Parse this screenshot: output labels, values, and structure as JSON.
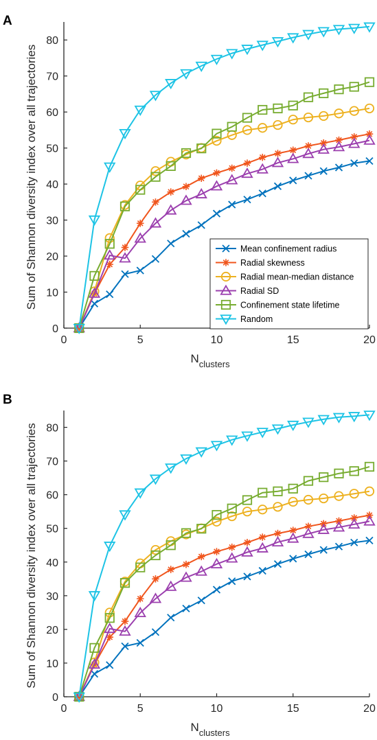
{
  "panels": [
    {
      "letter": "A"
    },
    {
      "letter": "B"
    }
  ],
  "chart_data": [
    {
      "type": "line",
      "panel": "A",
      "xlabel": "N",
      "xlabel_subscript": "clusters",
      "ylabel": "Sum of Shannon diversity index over all trajectories",
      "xlim": [
        0,
        20
      ],
      "ylim": [
        0,
        85
      ],
      "xticks": [
        0,
        5,
        10,
        15,
        20
      ],
      "yticks": [
        0,
        10,
        20,
        30,
        40,
        50,
        60,
        70,
        80
      ],
      "legend_position": "lower-right",
      "x": [
        1,
        2,
        3,
        4,
        5,
        6,
        7,
        8,
        9,
        10,
        11,
        12,
        13,
        14,
        15,
        16,
        17,
        18,
        19,
        20
      ],
      "series": [
        {
          "name": "Mean confinement radius",
          "color": "#0072BD",
          "marker": "x",
          "values": [
            0,
            6.8,
            9.4,
            15,
            16,
            19.2,
            23.5,
            26.2,
            28.6,
            31.8,
            34.3,
            35.7,
            37.4,
            39.4,
            41,
            42.3,
            43.6,
            44.6,
            45.8,
            46.4
          ]
        },
        {
          "name": "Radial skewness",
          "color": "#F0551C",
          "marker": "asterisk",
          "values": [
            0,
            9.6,
            17.7,
            22.4,
            29.1,
            35,
            37.8,
            39.3,
            41.6,
            43.1,
            44.4,
            45.8,
            47.4,
            48.5,
            49.4,
            50.6,
            51.4,
            52.2,
            53.1,
            53.9
          ]
        },
        {
          "name": "Radial mean-median distance",
          "color": "#EDB120",
          "marker": "circle",
          "values": [
            0,
            10.2,
            25,
            34.2,
            39.6,
            43.6,
            46.2,
            48.2,
            50,
            52,
            53.6,
            55,
            55.6,
            56.4,
            57.9,
            58.5,
            58.9,
            59.6,
            60.3,
            61
          ]
        },
        {
          "name": "Radial SD",
          "color": "#9B3FAE",
          "marker": "triangle-up",
          "values": [
            0,
            9.6,
            20.2,
            19.4,
            24.9,
            29.1,
            32.7,
            35.4,
            37.2,
            39.4,
            41.1,
            42.9,
            44.1,
            45.9,
            47,
            48.4,
            49.6,
            50.3,
            51.2,
            52.1
          ]
        },
        {
          "name": "Confinement state lifetime",
          "color": "#77AC30",
          "marker": "square",
          "values": [
            0,
            14.5,
            23.4,
            33.8,
            38.4,
            42,
            45,
            48.6,
            49.9,
            54,
            55.9,
            58.4,
            60.6,
            61,
            61.8,
            64.1,
            65.2,
            66.3,
            67,
            68.3
          ]
        },
        {
          "name": "Random",
          "color": "#1CC3E5",
          "marker": "triangle-down",
          "values": [
            0,
            30.1,
            44.8,
            54.1,
            60.6,
            64.7,
            68,
            70.7,
            72.8,
            74.7,
            76.3,
            77.5,
            78.6,
            79.6,
            80.7,
            81.6,
            82.4,
            83,
            83.3,
            83.7
          ]
        }
      ]
    },
    {
      "type": "line",
      "panel": "B",
      "xlabel": "N",
      "xlabel_subscript": "clusters",
      "ylabel": "Sum of Shannon diversity index over all trajectories",
      "xlim": [
        0,
        20
      ],
      "ylim": [
        0,
        85
      ],
      "xticks": [
        0,
        5,
        10,
        15,
        20
      ],
      "yticks": [
        0,
        10,
        20,
        30,
        40,
        50,
        60,
        70,
        80
      ],
      "x": [
        1,
        2,
        3,
        4,
        5,
        6,
        7,
        8,
        9,
        10,
        11,
        12,
        13,
        14,
        15,
        16,
        17,
        18,
        19,
        20
      ],
      "series": [
        {
          "color": "#0072BD",
          "marker": "x",
          "values": [
            0,
            6.8,
            9.4,
            15,
            16,
            19.2,
            23.5,
            26.2,
            28.6,
            31.8,
            34.3,
            35.7,
            37.4,
            39.4,
            41,
            42.3,
            43.6,
            44.6,
            45.8,
            46.4
          ]
        },
        {
          "color": "#F0551C",
          "marker": "asterisk",
          "values": [
            0,
            9.6,
            17.7,
            22.4,
            29.1,
            35,
            37.8,
            39.3,
            41.6,
            43.1,
            44.4,
            45.8,
            47.4,
            48.5,
            49.4,
            50.6,
            51.4,
            52.2,
            53.1,
            53.9
          ]
        },
        {
          "color": "#EDB120",
          "marker": "circle",
          "values": [
            0,
            10.2,
            25,
            34.2,
            39.6,
            43.6,
            46.2,
            48.2,
            50,
            52,
            53.6,
            55,
            55.6,
            56.4,
            57.9,
            58.5,
            58.9,
            59.6,
            60.3,
            61
          ]
        },
        {
          "color": "#9B3FAE",
          "marker": "triangle-up",
          "values": [
            0,
            9.6,
            20.2,
            19.4,
            24.9,
            29.1,
            32.7,
            35.4,
            37.2,
            39.4,
            41.1,
            42.9,
            44.1,
            45.9,
            47,
            48.4,
            49.6,
            50.3,
            51.2,
            52.1
          ]
        },
        {
          "color": "#77AC30",
          "marker": "square",
          "values": [
            0,
            14.5,
            23.4,
            33.8,
            38.4,
            42,
            45,
            48.6,
            49.9,
            54,
            55.9,
            58.4,
            60.6,
            61,
            61.8,
            64.1,
            65.2,
            66.3,
            67,
            68.3
          ]
        },
        {
          "color": "#1CC3E5",
          "marker": "triangle-down",
          "values": [
            0,
            30.1,
            44.8,
            54.1,
            60.6,
            64.7,
            68,
            70.7,
            72.8,
            74.7,
            76.3,
            77.5,
            78.6,
            79.6,
            80.7,
            81.6,
            82.4,
            83,
            83.3,
            83.7
          ]
        }
      ]
    }
  ]
}
